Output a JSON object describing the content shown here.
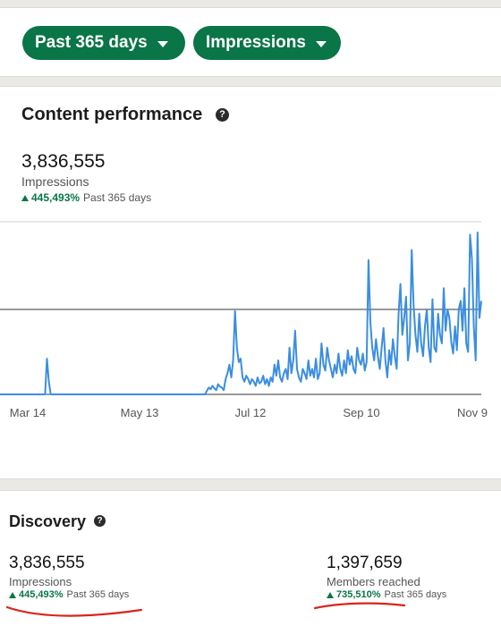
{
  "filters": {
    "range_label": "Past 365 days",
    "metric_label": "Impressions"
  },
  "content_performance": {
    "title": "Content performance",
    "help_glyph": "?",
    "value": "3,836,555",
    "label": "Impressions",
    "change": "445,493%",
    "period": "Past 365 days"
  },
  "chart_data": {
    "type": "line",
    "x_tick_labels": [
      "Mar 14",
      "May 13",
      "Jul 12",
      "Sep 10",
      "Nov 9"
    ],
    "grid": true,
    "line_color": "#3b8ee0",
    "series": [
      {
        "values": [
          0,
          0,
          0,
          0,
          0,
          0,
          0,
          0,
          0,
          0,
          0,
          0,
          0,
          0,
          0,
          0,
          0,
          0,
          0,
          0,
          0,
          0,
          0,
          0,
          0,
          0.42,
          0.15,
          0,
          0,
          0,
          0,
          0,
          0,
          0,
          0,
          0,
          0,
          0,
          0,
          0,
          0,
          0,
          0,
          0,
          0,
          0,
          0,
          0,
          0,
          0,
          0,
          0,
          0,
          0,
          0,
          0,
          0,
          0,
          0,
          0,
          0,
          0,
          0,
          0,
          0,
          0,
          0,
          0,
          0,
          0,
          0,
          0,
          0,
          0,
          0,
          0,
          0,
          0,
          0,
          0,
          0,
          0,
          0,
          0,
          0,
          0,
          0,
          0,
          0,
          0,
          0,
          0,
          0,
          0,
          0,
          0,
          0,
          0,
          0,
          0,
          0,
          0,
          0,
          0,
          0,
          0,
          0,
          0,
          0,
          0,
          0.04,
          0.08,
          0.06,
          0.1,
          0.07,
          0.05,
          0.12,
          0.09,
          0.08,
          0.05,
          0.18,
          0.25,
          0.35,
          0.2,
          0.4,
          0.98,
          0.55,
          0.38,
          0.42,
          0.2,
          0.15,
          0.22,
          0.18,
          0.12,
          0.18,
          0.15,
          0.1,
          0.2,
          0.13,
          0.15,
          0.22,
          0.12,
          0.18,
          0.1,
          0.2,
          0.15,
          0.35,
          0.22,
          0.4,
          0.2,
          0.15,
          0.25,
          0.3,
          0.18,
          0.55,
          0.25,
          0.4,
          0.75,
          0.3,
          0.2,
          0.15,
          0.3,
          0.25,
          0.18,
          0.4,
          0.22,
          0.3,
          0.2,
          0.42,
          0.18,
          0.25,
          0.6,
          0.35,
          0.28,
          0.55,
          0.4,
          0.3,
          0.2,
          0.35,
          0.25,
          0.48,
          0.3,
          0.22,
          0.4,
          0.25,
          0.52,
          0.35,
          0.45,
          0.3,
          0.25,
          0.55,
          0.4,
          0.35,
          0.48,
          0.28,
          0.38,
          1.58,
          0.85,
          0.55,
          0.4,
          0.65,
          0.45,
          0.3,
          0.55,
          0.78,
          0.4,
          0.2,
          0.52,
          0.35,
          0.65,
          0.45,
          0.3,
          0.95,
          1.3,
          0.7,
          0.9,
          1.15,
          0.4,
          0.6,
          1.7,
          1.05,
          0.7,
          0.5,
          0.95,
          0.6,
          0.45,
          0.8,
          1.0,
          0.55,
          0.38,
          1.12,
          0.55,
          0.5,
          0.95,
          0.7,
          0.6,
          1.25,
          0.75,
          1.0,
          0.9,
          0.62,
          0.48,
          0.8,
          0.52,
          1.0,
          1.1,
          0.75,
          1.25,
          0.6,
          0.5,
          1.88,
          1.6,
          0.8,
          0.4,
          1.98,
          0.9,
          1.1
        ]
      }
    ]
  },
  "discovery": {
    "title": "Discovery",
    "help_glyph": "?",
    "impressions": {
      "value": "3,836,555",
      "label": "Impressions",
      "change": "445,493%",
      "period": "Past 365 days"
    },
    "members": {
      "value": "1,397,659",
      "label": "Members reached",
      "change": "735,510%",
      "period": "Past 365 days"
    },
    "annotation_color": "#d7261e"
  }
}
